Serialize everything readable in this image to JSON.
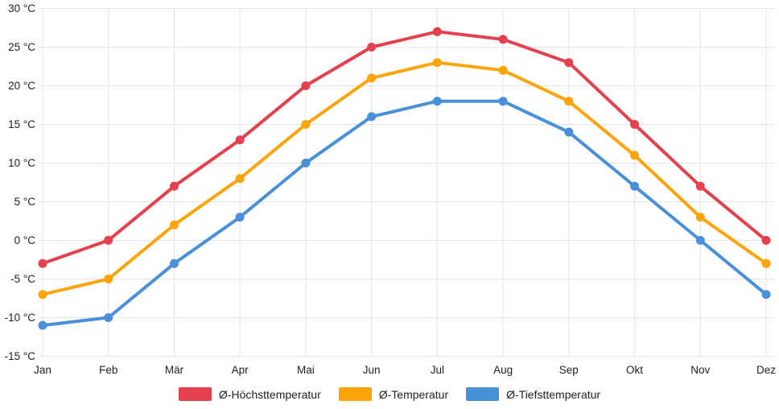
{
  "chart_data": {
    "type": "line",
    "categories": [
      "Jan",
      "Feb",
      "Mär",
      "Apr",
      "Mai",
      "Jun",
      "Jul",
      "Aug",
      "Sep",
      "Okt",
      "Nov",
      "Dez"
    ],
    "series": [
      {
        "name": "Ø-Höchsttemperatur",
        "color": "#e5404e",
        "values": [
          -3,
          0,
          7,
          13,
          20,
          25,
          27,
          26,
          23,
          15,
          7,
          0
        ]
      },
      {
        "name": "Ø-Temperatur",
        "color": "#fda40b",
        "values": [
          -7,
          -5,
          2,
          8,
          15,
          21,
          23,
          22,
          18,
          11,
          3,
          -3
        ]
      },
      {
        "name": "Ø-Tiefsttemperatur",
        "color": "#4a90d9",
        "values": [
          -11,
          -10,
          -3,
          3,
          10,
          16,
          18,
          18,
          14,
          7,
          0,
          -7
        ]
      }
    ],
    "yticks": [
      30,
      25,
      20,
      15,
      10,
      5,
      0,
      -5,
      -10,
      -15
    ],
    "ytick_labels": [
      "30 °C",
      "25 °C",
      "20 °C",
      "15 °C",
      "10 °C",
      "5 °C",
      "0 °C",
      "-5 °C",
      "-10 °C",
      "-15 °C"
    ],
    "ylim": [
      -15,
      30
    ],
    "title": "",
    "xlabel": "",
    "ylabel": "",
    "grid": true,
    "legend_position": "bottom"
  },
  "style": {
    "grid_color": "#e3e3e3",
    "text_color": "#212121",
    "background": "#ffffff"
  }
}
